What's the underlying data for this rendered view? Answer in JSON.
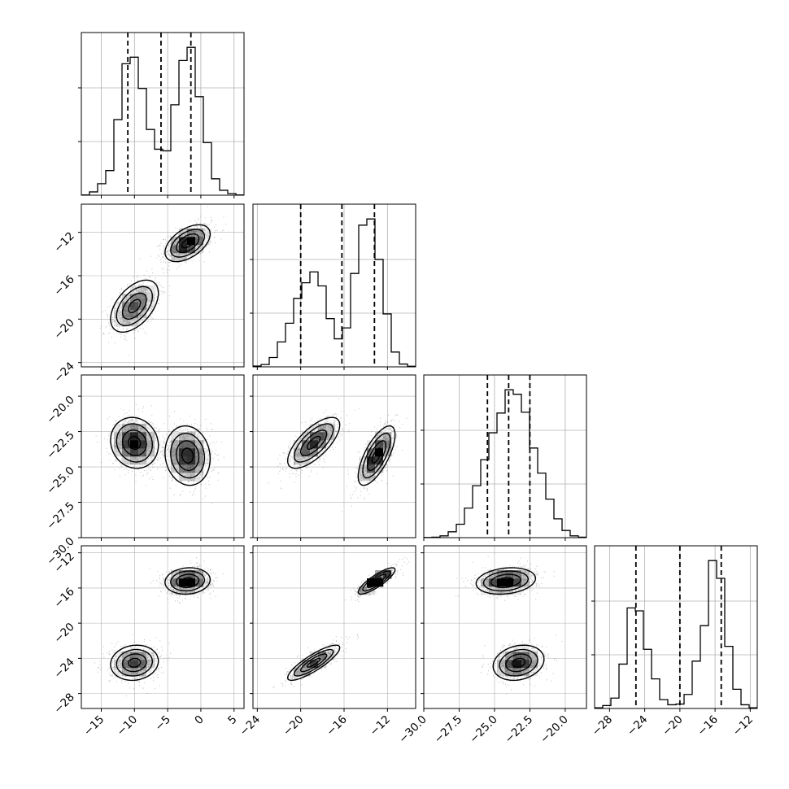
{
  "chart_data": {
    "type": "corner",
    "grid": true,
    "colors": {
      "line": "#000000",
      "grid": "#b0b0b0",
      "scatter": "#000000"
    },
    "params": [
      {
        "range": [
          -18,
          6.5
        ],
        "ticks": [
          -15,
          -10,
          -5,
          0,
          5
        ],
        "tick_labels": [
          "−15",
          "−10",
          "−5",
          "0",
          "5"
        ]
      },
      {
        "range": [
          -24.4,
          -9.4
        ],
        "ticks": [
          -24,
          -20,
          -16,
          -12
        ],
        "tick_labels": [
          "−24",
          "−20",
          "−16",
          "−12"
        ]
      },
      {
        "range": [
          -30,
          -18.5
        ],
        "ticks": [
          -30,
          -27.5,
          -25,
          -22.5,
          -20
        ],
        "tick_labels": [
          "−30.0",
          "−27.5",
          "−25.0",
          "−22.5",
          "−20.0"
        ]
      },
      {
        "range": [
          -29.7,
          -11.2
        ],
        "ticks": [
          -28,
          -24,
          -20,
          -16,
          -12
        ],
        "tick_labels": [
          "−28",
          "−24",
          "−20",
          "−16",
          "−12"
        ]
      }
    ],
    "histograms": [
      {
        "edges": [
          -18,
          -16.775,
          -15.55,
          -14.325,
          -13.1,
          -11.875,
          -10.65,
          -9.425,
          -8.2,
          -6.975,
          -5.75,
          -4.525,
          -3.3,
          -2.075,
          -0.85,
          0.375,
          1.6,
          2.825,
          4.05,
          5.275,
          6.5
        ],
        "counts": [
          2,
          20,
          70,
          150,
          460,
          800,
          840,
          650,
          400,
          280,
          270,
          550,
          820,
          900,
          600,
          320,
          100,
          30,
          10,
          2
        ],
        "quantiles": [
          -11,
          -6,
          -1.5
        ]
      },
      {
        "edges": [
          -24.4,
          -23.65,
          -22.9,
          -22.15,
          -21.4,
          -20.65,
          -19.9,
          -19.15,
          -18.4,
          -17.65,
          -16.9,
          -16.15,
          -15.4,
          -14.65,
          -13.9,
          -13.15,
          -12.4,
          -11.65,
          -10.9,
          -10.15,
          -9.4
        ],
        "counts": [
          5,
          15,
          60,
          160,
          280,
          440,
          540,
          610,
          520,
          310,
          180,
          250,
          600,
          910,
          950,
          690,
          340,
          95,
          18,
          4
        ],
        "quantiles": [
          -20,
          -16.2,
          -13.2
        ]
      },
      {
        "edges": [
          -30,
          -29.425,
          -28.85,
          -28.275,
          -27.7,
          -27.125,
          -26.55,
          -25.975,
          -25.4,
          -24.825,
          -24.25,
          -23.675,
          -23.1,
          -22.525,
          -21.95,
          -21.375,
          -20.8,
          -20.225,
          -19.65,
          -19.075,
          -18.5
        ],
        "counts": [
          2,
          5,
          20,
          65,
          150,
          330,
          580,
          870,
          1170,
          1390,
          1650,
          1600,
          1400,
          1000,
          720,
          430,
          210,
          80,
          20,
          5
        ],
        "quantiles": [
          -25.5,
          -24,
          -22.5
        ]
      },
      {
        "edges": [
          -29.7,
          -28.775,
          -27.85,
          -26.925,
          -26,
          -25.075,
          -24.15,
          -23.225,
          -22.3,
          -21.375,
          -20.45,
          -19.525,
          -18.6,
          -17.675,
          -16.75,
          -15.825,
          -14.9,
          -13.975,
          -13.05,
          -12.125,
          -11.2
        ],
        "counts": [
          5,
          20,
          70,
          300,
          680,
          660,
          400,
          200,
          60,
          25,
          30,
          95,
          320,
          560,
          1000,
          880,
          420,
          130,
          25,
          5
        ],
        "quantiles": [
          -25,
          -20,
          -15.3
        ]
      }
    ],
    "modes": [
      {
        "center": [
          -10,
          -18.8,
          -23.3,
          -24.5
        ],
        "sd": [
          1.8,
          1.2,
          0.9,
          1.0
        ],
        "corr": {
          "0-1": 0.5,
          "0-2": -0.1,
          "0-3": 0.1,
          "1-2": 0.7,
          "1-3": 0.85,
          "2-3": 0.2
        }
      },
      {
        "center": [
          -2,
          -13,
          -24.2,
          -15.2
        ],
        "sd": [
          1.7,
          0.85,
          1.05,
          0.75
        ],
        "corr": {
          "0-1": 0.5,
          "0-2": -0.1,
          "0-3": 0.1,
          "1-2": 0.7,
          "1-3": 0.85,
          "2-3": 0.2
        }
      }
    ]
  }
}
